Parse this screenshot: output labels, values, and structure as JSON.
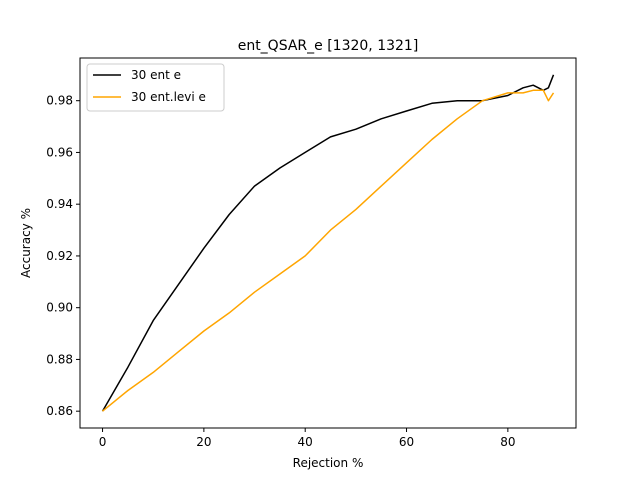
{
  "chart_data": {
    "type": "line",
    "title": "ent_QSAR_e  [1320, 1321]",
    "xlabel": "Rejection %",
    "ylabel": "Accuracy %",
    "xlim": [
      -4.45,
      93.45
    ],
    "ylim": [
      0.8535,
      0.9965
    ],
    "xticks": [
      0,
      20,
      40,
      60,
      80
    ],
    "xtick_labels": [
      "0",
      "20",
      "40",
      "60",
      "80"
    ],
    "yticks": [
      0.86,
      0.88,
      0.9,
      0.92,
      0.94,
      0.96,
      0.98
    ],
    "ytick_labels": [
      "0.86",
      "0.88",
      "0.90",
      "0.92",
      "0.94",
      "0.96",
      "0.98"
    ],
    "grid": false,
    "legend_position": "top-left",
    "x": [
      0,
      5,
      10,
      15,
      20,
      25,
      30,
      35,
      40,
      45,
      50,
      55,
      60,
      65,
      70,
      75,
      80,
      83,
      85,
      87,
      88,
      89
    ],
    "series": [
      {
        "name": "30 ent e",
        "color": "#000000",
        "values": [
          0.86,
          0.877,
          0.895,
          0.909,
          0.923,
          0.936,
          0.947,
          0.954,
          0.96,
          0.966,
          0.969,
          0.973,
          0.976,
          0.979,
          0.98,
          0.98,
          0.982,
          0.985,
          0.986,
          0.984,
          0.985,
          0.99
        ]
      },
      {
        "name": "30 ent.levi e",
        "color": "#FFA500",
        "values": [
          0.86,
          0.868,
          0.875,
          0.883,
          0.891,
          0.898,
          0.906,
          0.913,
          0.92,
          0.93,
          0.938,
          0.947,
          0.956,
          0.965,
          0.973,
          0.98,
          0.983,
          0.983,
          0.984,
          0.984,
          0.98,
          0.983
        ]
      }
    ]
  }
}
